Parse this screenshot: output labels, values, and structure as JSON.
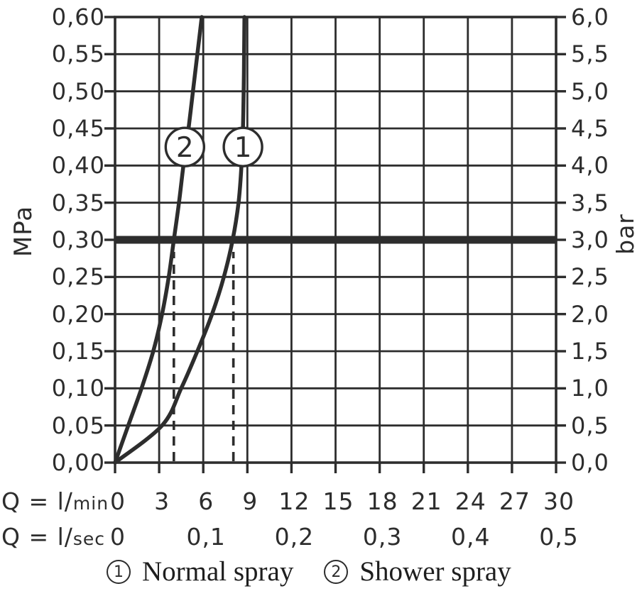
{
  "colors": {
    "ink": "#2d2d2d",
    "background": "#ffffff"
  },
  "chart_data": {
    "type": "line",
    "grid": true,
    "y_axis_left": {
      "label": "MPa",
      "min": 0,
      "max": 0.6,
      "tick_step": 0.05,
      "tick_labels": [
        "0,60",
        "0,55",
        "0,50",
        "0,45",
        "0,40",
        "0,35",
        "0,30",
        "0,25",
        "0,20",
        "0,15",
        "0,10",
        "0,05",
        "0,00"
      ]
    },
    "y_axis_right": {
      "label": "bar",
      "min": 0,
      "max": 6.0,
      "tick_step": 0.5,
      "tick_labels": [
        "6,0",
        "5,5",
        "5,0",
        "4,5",
        "4,0",
        "3,5",
        "3,0",
        "2,5",
        "2,0",
        "1,5",
        "1,0",
        "0,5",
        "0,0"
      ]
    },
    "x_axis": {
      "row_lmin": {
        "prefix": "Q = l/",
        "unit": "min",
        "min": 0,
        "max": 30,
        "tick_step": 3,
        "tick_labels": [
          "0",
          "3",
          "6",
          "9",
          "12",
          "15",
          "18",
          "21",
          "24",
          "27",
          "30"
        ]
      },
      "row_lsec": {
        "prefix": "Q = l/",
        "unit": "sec",
        "ticks": [
          {
            "label": "0",
            "q_lmin": 0
          },
          {
            "label": "0,1",
            "q_lmin": 6
          },
          {
            "label": "0,2",
            "q_lmin": 12
          },
          {
            "label": "0,3",
            "q_lmin": 18
          },
          {
            "label": "0,4",
            "q_lmin": 24
          },
          {
            "label": "0,5",
            "q_lmin": 30
          }
        ]
      }
    },
    "reference_line": {
      "pressure_mpa": 0.3,
      "pressure_bar": 3.0
    },
    "dashed_guides_q_lmin": [
      4.0,
      8.05
    ],
    "pressures_mpa": [
      0,
      0.05,
      0.1,
      0.15,
      0.2,
      0.25,
      0.3,
      0.35,
      0.4,
      0.45,
      0.5,
      0.55,
      0.6
    ],
    "series": [
      {
        "marker": "1",
        "name": "Normal spray",
        "flow_lmin": [
          0,
          3.2,
          4.5,
          5.6,
          6.6,
          7.4,
          8.0,
          8.4,
          8.6,
          8.7,
          8.75,
          8.78,
          8.8
        ],
        "marker_pos": {
          "q_lmin": 8.7,
          "p_mpa": 0.425
        }
      },
      {
        "marker": "2",
        "name": "Shower spray",
        "flow_lmin": [
          0,
          0.9,
          1.8,
          2.6,
          3.2,
          3.65,
          4.0,
          4.35,
          4.65,
          5.0,
          5.3,
          5.6,
          5.9
        ],
        "marker_pos": {
          "q_lmin": 4.75,
          "p_mpa": 0.425
        }
      }
    ],
    "legend": [
      {
        "symbol": "1",
        "label": "Normal spray"
      },
      {
        "symbol": "2",
        "label": "Shower spray"
      }
    ]
  }
}
